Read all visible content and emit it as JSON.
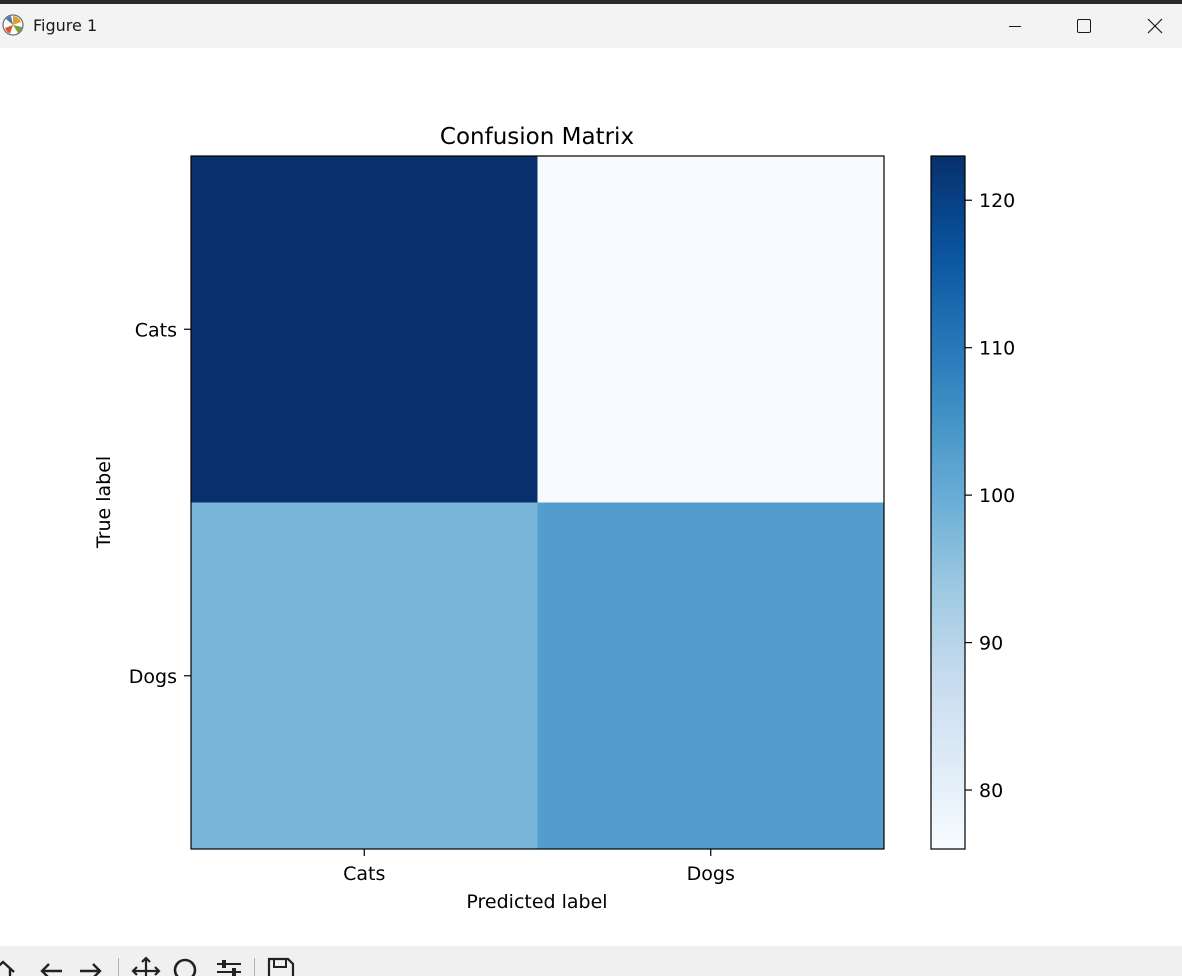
{
  "window": {
    "title": "Figure 1",
    "icons": [
      "app-icon",
      "minimize-icon",
      "maximize-icon",
      "close-icon"
    ]
  },
  "toolbar": {
    "icons": [
      "home-icon",
      "back-icon",
      "forward-icon",
      "pan-icon",
      "zoom-icon",
      "configure-subplots-icon",
      "save-icon"
    ]
  },
  "chart_data": {
    "type": "heatmap",
    "title": "Confusion Matrix",
    "xlabel": "Predicted label",
    "ylabel": "True label",
    "x_categories": [
      "Cats",
      "Dogs"
    ],
    "y_categories": [
      "Cats",
      "Dogs"
    ],
    "values": [
      [
        123,
        76
      ],
      [
        98,
        103
      ]
    ],
    "colormap": "Blues",
    "colors": {
      "low": "#f7fbff",
      "high": "#08306b"
    },
    "colorbar": {
      "range": [
        76,
        123
      ],
      "ticks": [
        80,
        90,
        100,
        110,
        120
      ],
      "tick_labels": [
        "80",
        "90",
        "100",
        "110",
        "120"
      ]
    },
    "grid": false,
    "legend": "colorbar-right"
  }
}
